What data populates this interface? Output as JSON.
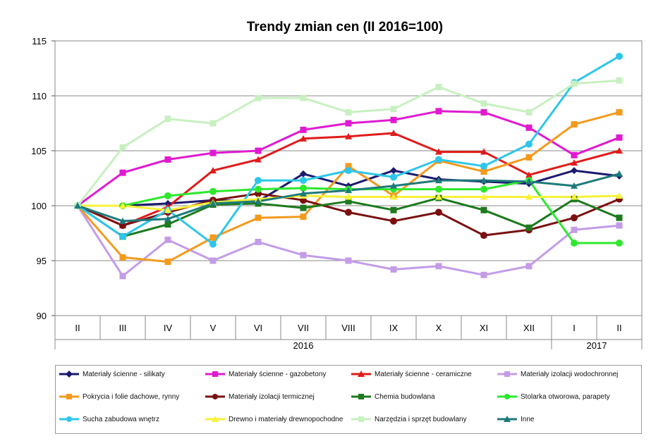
{
  "chart_data": {
    "type": "line",
    "title": "Trendy zmian cen (II 2016=100)",
    "categories": [
      "II",
      "III",
      "IV",
      "V",
      "VI",
      "VII",
      "VIII",
      "IX",
      "X",
      "XI",
      "XII",
      "I",
      "II"
    ],
    "year_labels": [
      {
        "label": "2016",
        "from": 0,
        "to": 10
      },
      {
        "label": "2017",
        "from": 11,
        "to": 12
      }
    ],
    "ylim": [
      90,
      115
    ],
    "yticks": [
      90,
      95,
      100,
      105,
      110,
      115
    ],
    "grid": true,
    "series": [
      {
        "name": "Materiały ścienne - silikaty",
        "color": "#1a1a6e",
        "marker": "diamond",
        "values": [
          100,
          100,
          100.2,
          100.5,
          100.4,
          102.9,
          101.8,
          103.2,
          102.4,
          102.2,
          102.0,
          103.2,
          102.7
        ]
      },
      {
        "name": "Materiały ścienne - gazobetony",
        "color": "#e01ad0",
        "marker": "square",
        "values": [
          100,
          103.0,
          104.2,
          104.8,
          105.0,
          106.9,
          107.5,
          107.8,
          108.6,
          108.5,
          107.1,
          104.6,
          106.2
        ]
      },
      {
        "name": "Materiały ścienne - ceramiczne",
        "color": "#e01b1b",
        "marker": "triangle",
        "values": [
          100,
          98.2,
          99.9,
          103.2,
          104.2,
          106.1,
          106.3,
          106.6,
          104.9,
          104.9,
          102.8,
          103.9,
          105.0
        ]
      },
      {
        "name": "Materiały izolacji wodochronnej",
        "color": "#c39ce8",
        "marker": "square",
        "values": [
          100,
          93.6,
          96.9,
          95.0,
          96.7,
          95.5,
          95.0,
          94.2,
          94.5,
          93.7,
          94.5,
          97.8,
          98.2
        ]
      },
      {
        "name": "Pokrycia i folie dachowe, rynny",
        "color": "#f39a1d",
        "marker": "square",
        "values": [
          100,
          95.3,
          94.9,
          97.1,
          98.9,
          99.0,
          103.6,
          100.9,
          104.1,
          103.1,
          104.4,
          107.4,
          108.5
        ]
      },
      {
        "name": "Materiały izolacji termicznej",
        "color": "#7a1010",
        "marker": "circle",
        "values": [
          100,
          98.2,
          99.4,
          100.5,
          101.1,
          100.5,
          99.4,
          98.6,
          99.4,
          97.3,
          97.8,
          98.9,
          100.6
        ]
      },
      {
        "name": "Chemia budowlana",
        "color": "#1d7a1d",
        "marker": "square",
        "values": [
          100,
          97.2,
          98.3,
          100.1,
          100.2,
          99.8,
          100.4,
          99.6,
          100.7,
          99.6,
          98.0,
          100.6,
          98.9
        ]
      },
      {
        "name": "Stolarka otworowa, parapety",
        "color": "#2de82d",
        "marker": "circle",
        "values": [
          100,
          100,
          100.9,
          101.3,
          101.5,
          101.6,
          101.5,
          101.5,
          101.5,
          101.5,
          102.3,
          96.6,
          96.6
        ]
      },
      {
        "name": "Sucha zabudowa wnętrz",
        "color": "#2ec6ea",
        "marker": "circle",
        "values": [
          100,
          97.2,
          99.6,
          96.5,
          102.3,
          102.3,
          103.2,
          102.6,
          104.2,
          103.6,
          105.6,
          111.2,
          113.6
        ]
      },
      {
        "name": "Drewno i materiały drewnopochodne",
        "color": "#f6f23a",
        "marker": "triangle",
        "values": [
          100,
          100,
          99.6,
          100.3,
          100.6,
          100.9,
          100.8,
          100.8,
          100.8,
          100.8,
          100.8,
          100.8,
          100.9
        ]
      },
      {
        "name": "Narzędzia i sprzęt budowlany",
        "color": "#c8f0c0",
        "marker": "square",
        "values": [
          100,
          105.3,
          107.9,
          107.5,
          109.8,
          109.8,
          108.5,
          108.8,
          110.8,
          109.3,
          108.5,
          111.1,
          111.4
        ]
      },
      {
        "name": "Inne",
        "color": "#1e7a7a",
        "marker": "triangle",
        "values": [
          100,
          98.6,
          98.8,
          100.2,
          100.4,
          101.1,
          101.4,
          101.8,
          102.3,
          102.3,
          102.2,
          101.8,
          102.9
        ]
      }
    ]
  }
}
